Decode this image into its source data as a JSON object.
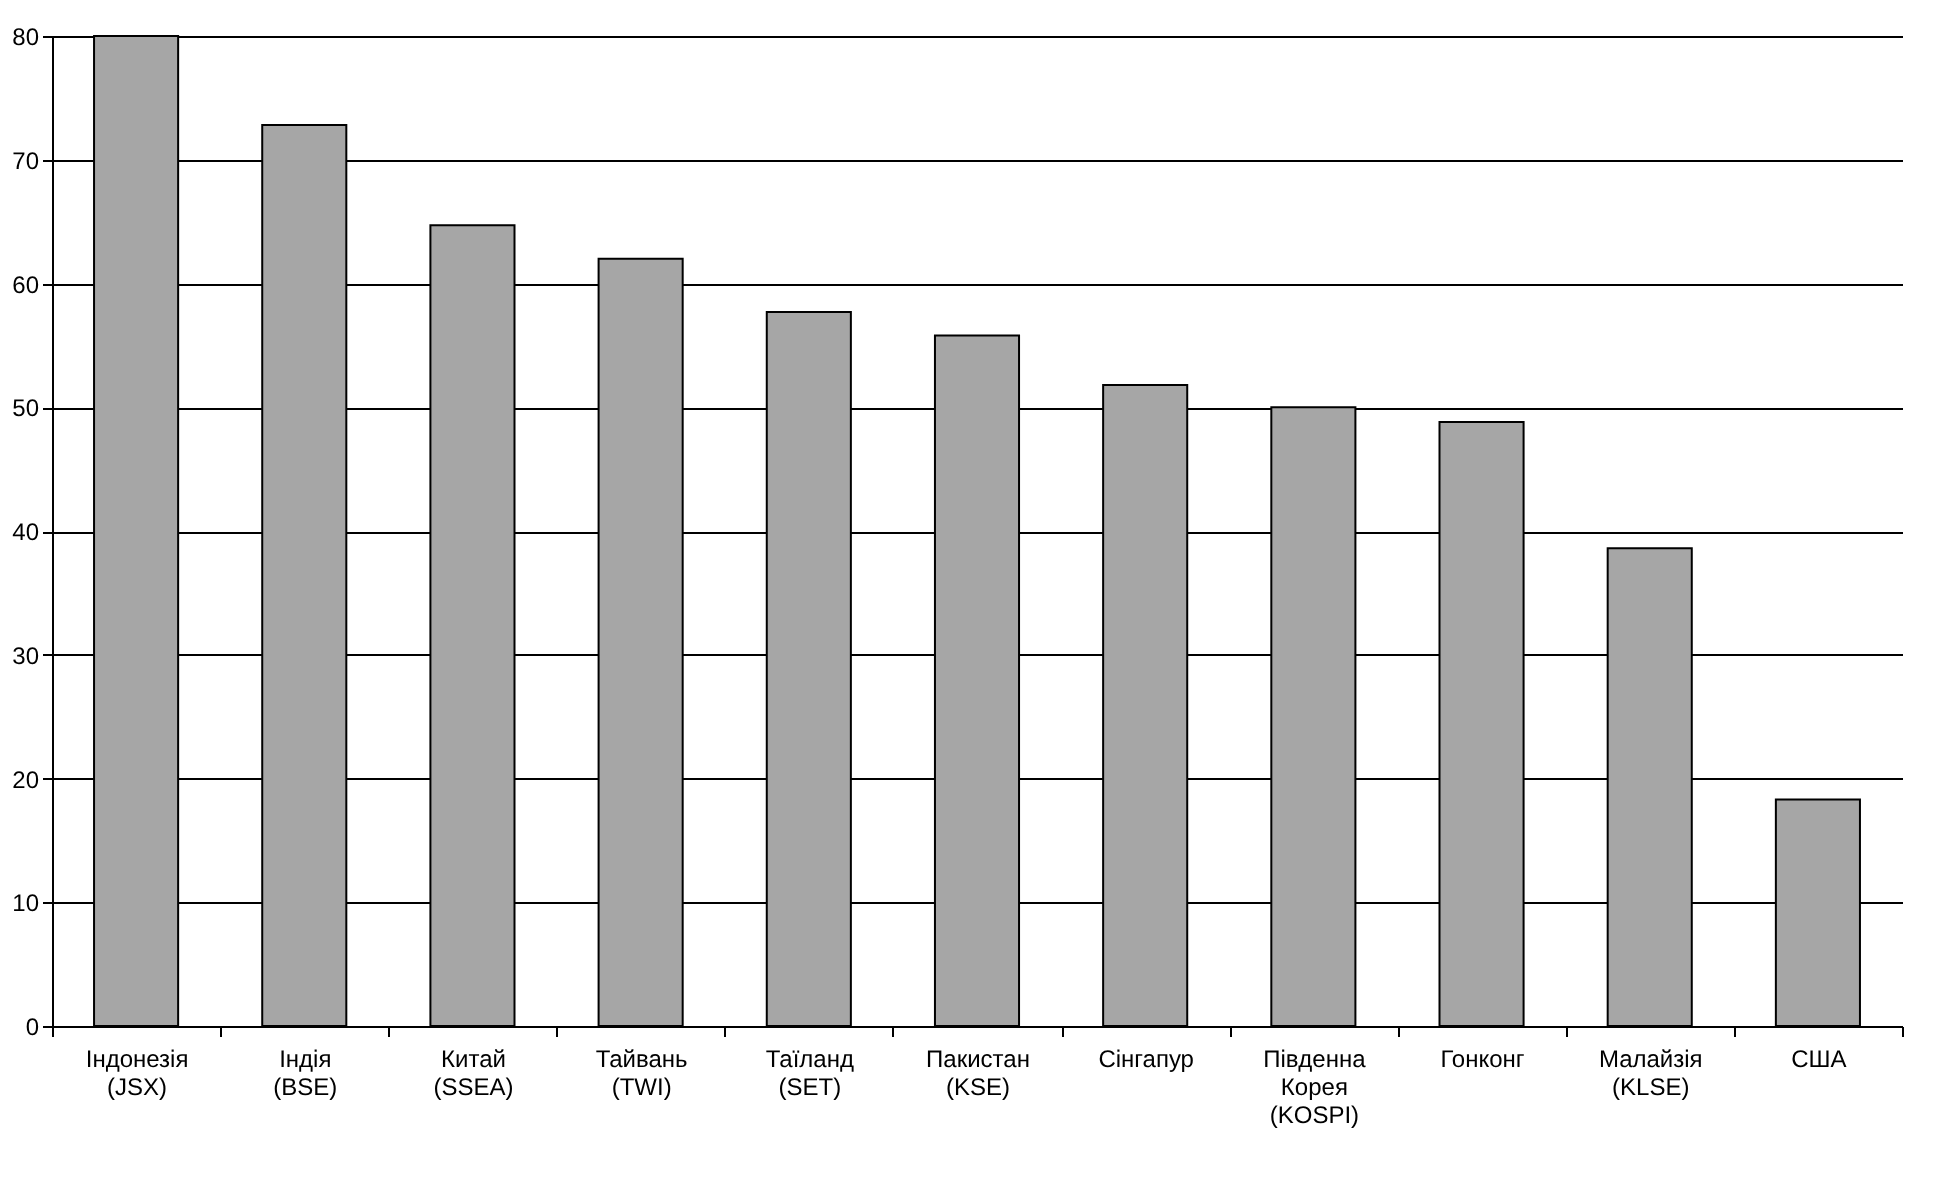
{
  "chart_data": {
    "type": "bar",
    "categories": [
      "Індонезія\n(JSX)",
      "Індія\n(BSE)",
      "Китай\n(SSEA)",
      "Тайвань\n(TWI)",
      "Таїланд\n(SET)",
      "Пакистан\n(KSE)",
      "Сінгапур",
      "Південна\nКорея\n(KOSPI)",
      "Гонконг",
      "Малайзія\n(KLSE)",
      "США"
    ],
    "values": [
      80,
      72.8,
      64.7,
      62.0,
      57.7,
      55.8,
      51.8,
      50.0,
      48.8,
      38.6,
      18.3
    ],
    "color": "#a6a6a6",
    "ylim": [
      0,
      80
    ],
    "yticks": [
      0,
      10,
      20,
      30,
      40,
      50,
      60,
      70,
      80
    ],
    "grid": "y"
  }
}
